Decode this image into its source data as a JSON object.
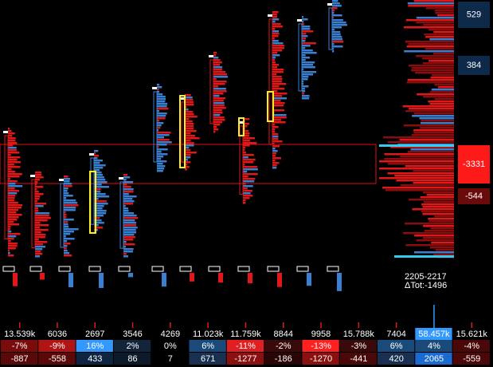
{
  "price_scale": {
    "labels": [
      {
        "text": "529",
        "color": "#0d2a4a"
      },
      {
        "text": "384",
        "color": "#0d2a4a"
      },
      {
        "text": "-3331",
        "color": "#ff1a1a"
      },
      {
        "text": "-544",
        "color": "#6b0a0a"
      }
    ]
  },
  "summary": {
    "range": "2205-2217",
    "delta_total": "ΔTot:-1496"
  },
  "table": {
    "columns": [
      {
        "volume": "13.539k",
        "pct": "-7%",
        "delta": "-887",
        "volume_color": "#000000",
        "pct_color": "#7a0c0c",
        "delta_color": "#5a0808"
      },
      {
        "volume": "6036",
        "pct": "-9%",
        "delta": "-558",
        "volume_color": "#000000",
        "pct_color": "#b01414",
        "delta_color": "#5a0808"
      },
      {
        "volume": "2697",
        "pct": "16%",
        "delta": "433",
        "volume_color": "#000000",
        "pct_color": "#3399ff",
        "delta_color": "#0d2540"
      },
      {
        "volume": "3546",
        "pct": "2%",
        "delta": "86",
        "volume_color": "#000000",
        "pct_color": "#14243a",
        "delta_color": "#0d1a2a"
      },
      {
        "volume": "4269",
        "pct": "0%",
        "delta": "7",
        "volume_color": "#000000",
        "pct_color": "#000000",
        "delta_color": "#000000"
      },
      {
        "volume": "11.023k",
        "pct": "6%",
        "delta": "671",
        "volume_color": "#000000",
        "pct_color": "#1a4a7a",
        "delta_color": "#1a3050"
      },
      {
        "volume": "11.759k",
        "pct": "-11%",
        "delta": "-1277",
        "volume_color": "#000000",
        "pct_color": "#e02020",
        "delta_color": "#8b1010"
      },
      {
        "volume": "8844",
        "pct": "-2%",
        "delta": "-186",
        "volume_color": "#000000",
        "pct_color": "#3a0a0a",
        "delta_color": "#2a0505"
      },
      {
        "volume": "9958",
        "pct": "-13%",
        "delta": "-1270",
        "volume_color": "#000000",
        "pct_color": "#ff2020",
        "delta_color": "#8b1010"
      },
      {
        "volume": "15.788k",
        "pct": "-3%",
        "delta": "-441",
        "volume_color": "#000000",
        "pct_color": "#3a0a0a",
        "delta_color": "#4a0808"
      },
      {
        "volume": "7404",
        "pct": "6%",
        "delta": "420",
        "volume_color": "#000000",
        "pct_color": "#1a4a7a",
        "delta_color": "#1a3050"
      },
      {
        "volume": "58.457k",
        "pct": "4%",
        "delta": "2065",
        "volume_color": "#3399ff",
        "pct_color": "#1a4a7a",
        "delta_color": "#1a6ad0"
      },
      {
        "volume": "15.621k",
        "pct": "-4%",
        "delta": "-559",
        "volume_color": "#000000",
        "pct_color": "#4a0808",
        "delta_color": "#4a0808"
      }
    ]
  }
}
